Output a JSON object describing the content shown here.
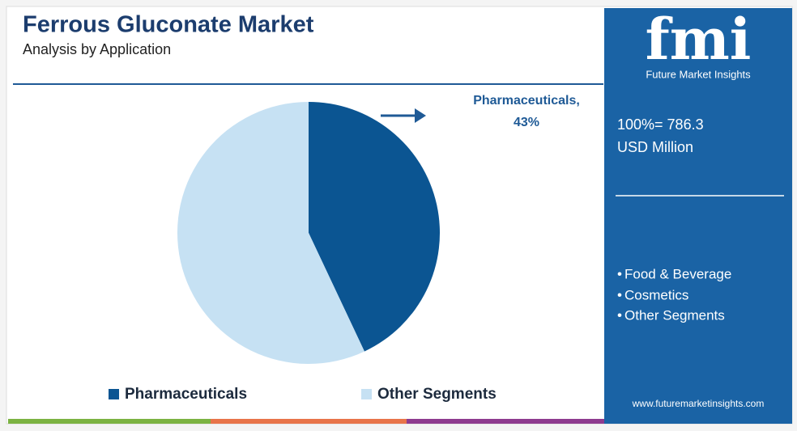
{
  "chart_data": {
    "type": "pie",
    "title": "Ferrous Gluconate Market",
    "subtitle": "Analysis by Application",
    "categories": [
      "Pharmaceuticals",
      "Other Segments"
    ],
    "values": [
      43,
      57
    ],
    "colors": [
      "#0b5592",
      "#c6e1f3"
    ],
    "annotation": "Pharmaceuticals,",
    "value_labels": [
      "43%",
      null
    ]
  },
  "side_panel": {
    "logo": "fmi",
    "brand": "Future Market Insights",
    "total": "100%= 786.3",
    "unit": "USD Million",
    "segments": [
      "Food & Beverage",
      "Cosmetics",
      "Other Segments"
    ],
    "website": "www.futuremarketinsights.com"
  }
}
